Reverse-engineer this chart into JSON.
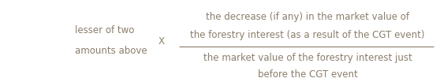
{
  "bg_color": "#ffffff",
  "text_color": "#8b7d6b",
  "left_line1": "lesser of two",
  "left_line2": "amounts above",
  "multiply_symbol": "X",
  "numerator_line1": "the decrease (if any) in the market value of",
  "numerator_line2": "the forestry interest (as a result of the CGT event)",
  "denominator_line1": "the market value of the forestry interest just",
  "denominator_line2": "before the CGT event",
  "font_size": 8.5,
  "fig_width": 5.58,
  "fig_height": 1.04,
  "dpi": 100
}
